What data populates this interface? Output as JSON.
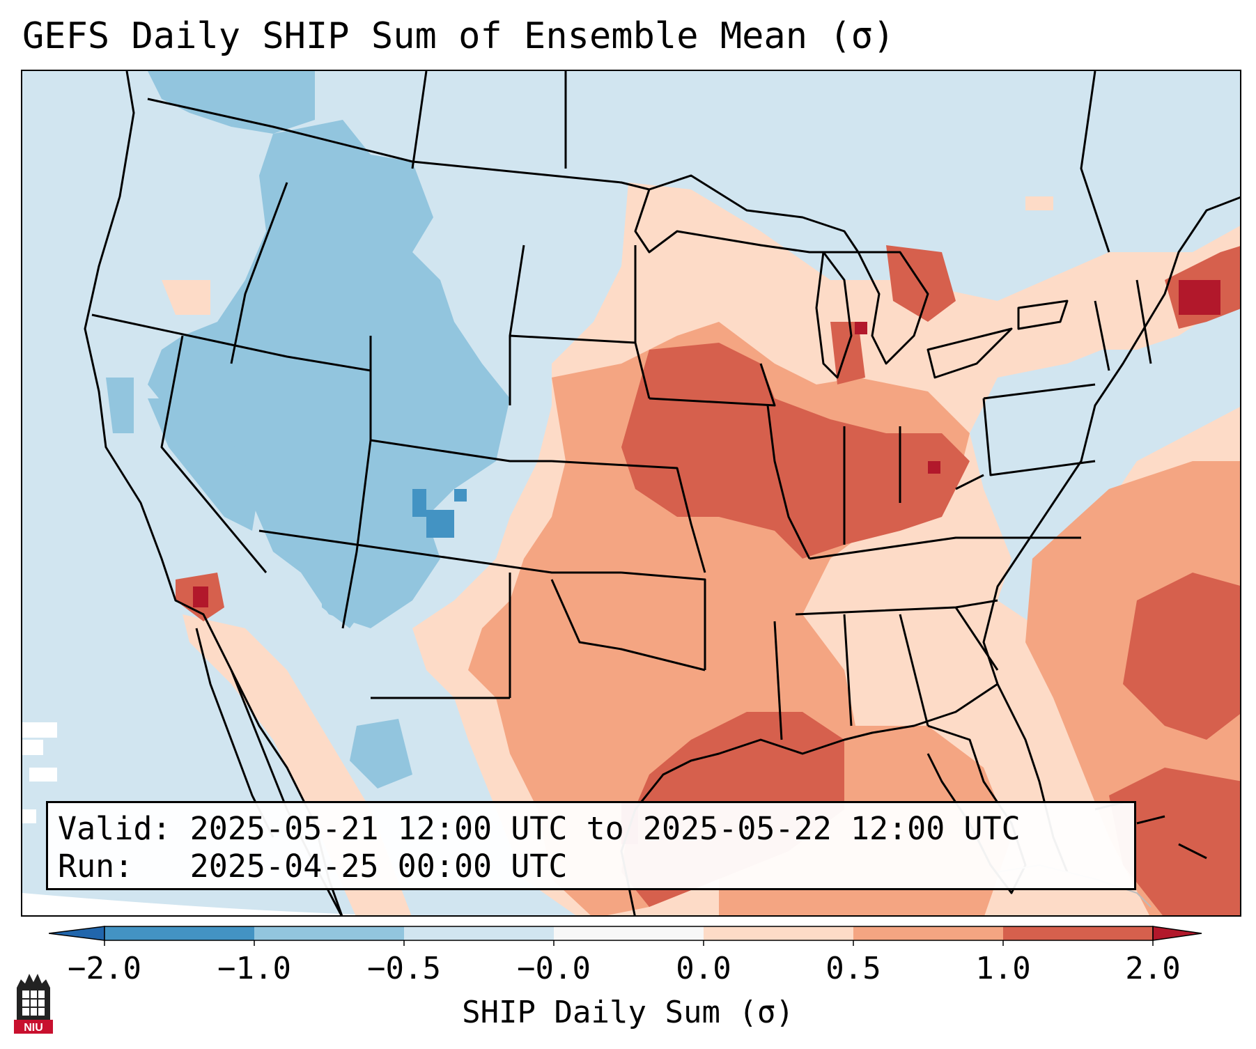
{
  "title": "GEFS Daily SHIP Sum of Ensemble Mean (σ)",
  "info": {
    "valid_line": "Valid: 2025-05-21 12:00 UTC to 2025-05-22 12:00 UTC",
    "run_line": "Run:   2025-04-25 00:00 UTC"
  },
  "colorbar": {
    "label": "SHIP Daily Sum (σ)",
    "ticks": [
      "−2.0",
      "−1.0",
      "−0.5",
      "−0.0",
      "0.0",
      "0.5",
      "1.0",
      "2.0"
    ],
    "bins": [
      {
        "range": "-2.0 to -1.0",
        "color": "#4393c3"
      },
      {
        "range": "-1.0 to -0.5",
        "color": "#92c5de"
      },
      {
        "range": "-0.5 to -0.0",
        "color": "#d1e5f0"
      },
      {
        "range": "-0.0 to 0.0",
        "color": "#f7f7f7"
      },
      {
        "range": "0.0 to 0.5",
        "color": "#fddbc7"
      },
      {
        "range": "0.5 to 1.0",
        "color": "#f4a582"
      },
      {
        "range": "1.0 to 2.0",
        "color": "#d6604d"
      }
    ],
    "under_color": "#2166ac",
    "over_color": "#b2182b"
  },
  "logo": {
    "text": "NIU",
    "icon": "niu-logo-icon"
  }
}
